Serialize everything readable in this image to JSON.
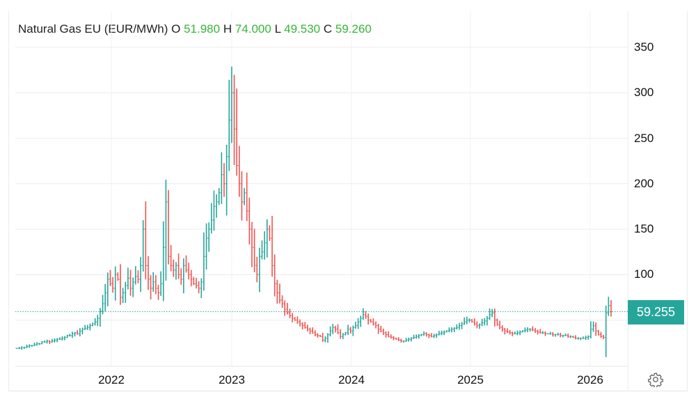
{
  "header": {
    "instrument": "Natural Gas EU (EUR/MWh)",
    "open_label": "O",
    "open_value": "51.980",
    "high_label": "H",
    "high_value": "74.000",
    "low_label": "L",
    "low_value": "49.530",
    "close_label": "C",
    "close_value": "59.260"
  },
  "last_price_badge": "59.255",
  "colors": {
    "up": "#26a69a",
    "down": "#ef5350",
    "value_text": "#37b53a",
    "grid": "#ececec",
    "badge_bg": "#26a69a"
  },
  "settings_icon": "gear-icon",
  "chart_data": {
    "type": "ohlc",
    "title": "Natural Gas EU (EUR/MWh)",
    "interval": "weekly",
    "xlabel": "",
    "ylabel": "EUR/MWh",
    "ylim": [
      0,
      380
    ],
    "yticks": [
      100,
      150,
      200,
      250,
      300,
      350
    ],
    "xticks": [
      "2022",
      "2023",
      "2024",
      "2025",
      "2026"
    ],
    "grid": true,
    "last_price": 59.255,
    "x_start": "2021-04",
    "x_end": "2026-03",
    "closes": [
      19,
      19,
      20,
      20,
      21,
      22,
      22,
      23,
      24,
      24,
      26,
      26,
      27,
      26,
      27,
      28,
      29,
      29,
      30,
      31,
      33,
      33,
      35,
      36,
      35,
      38,
      40,
      41,
      42,
      44,
      46,
      48,
      52,
      60,
      68,
      80,
      95,
      90,
      85,
      100,
      95,
      75,
      80,
      88,
      96,
      85,
      92,
      98,
      95,
      110,
      150,
      110,
      95,
      85,
      92,
      85,
      80,
      90,
      130,
      180,
      120,
      110,
      105,
      110,
      100,
      95,
      110,
      105,
      100,
      95,
      90,
      88,
      85,
      92,
      120,
      140,
      150,
      160,
      175,
      180,
      190,
      210,
      200,
      230,
      270,
      300,
      260,
      220,
      200,
      180,
      190,
      170,
      150,
      130,
      110,
      100,
      120,
      125,
      135,
      150,
      140,
      110,
      90,
      80,
      72,
      68,
      62,
      58,
      55,
      52,
      50,
      48,
      46,
      44,
      42,
      40,
      38,
      36,
      34,
      33,
      32,
      28,
      30,
      34,
      38,
      42,
      40,
      36,
      32,
      34,
      36,
      40,
      38,
      42,
      44,
      48,
      52,
      56,
      54,
      50,
      48,
      46,
      44,
      40,
      38,
      36,
      34,
      32,
      31,
      30,
      29,
      28,
      27,
      27,
      28,
      29,
      30,
      31,
      32,
      33,
      34,
      35,
      34,
      33,
      32,
      33,
      34,
      35,
      36,
      37,
      38,
      39,
      40,
      41,
      42,
      44,
      46,
      48,
      50,
      50,
      48,
      46,
      44,
      45,
      47,
      49,
      52,
      56,
      58,
      50,
      45,
      42,
      40,
      38,
      37,
      36,
      35,
      35,
      36,
      37,
      38,
      39,
      40,
      40,
      39,
      38,
      37,
      36,
      36,
      35,
      35,
      35,
      34,
      34,
      34,
      33,
      33,
      33,
      32,
      32,
      31,
      30,
      30,
      30,
      30,
      31,
      32,
      40,
      44,
      38,
      34,
      32,
      31,
      58,
      66,
      59.26
    ]
  }
}
